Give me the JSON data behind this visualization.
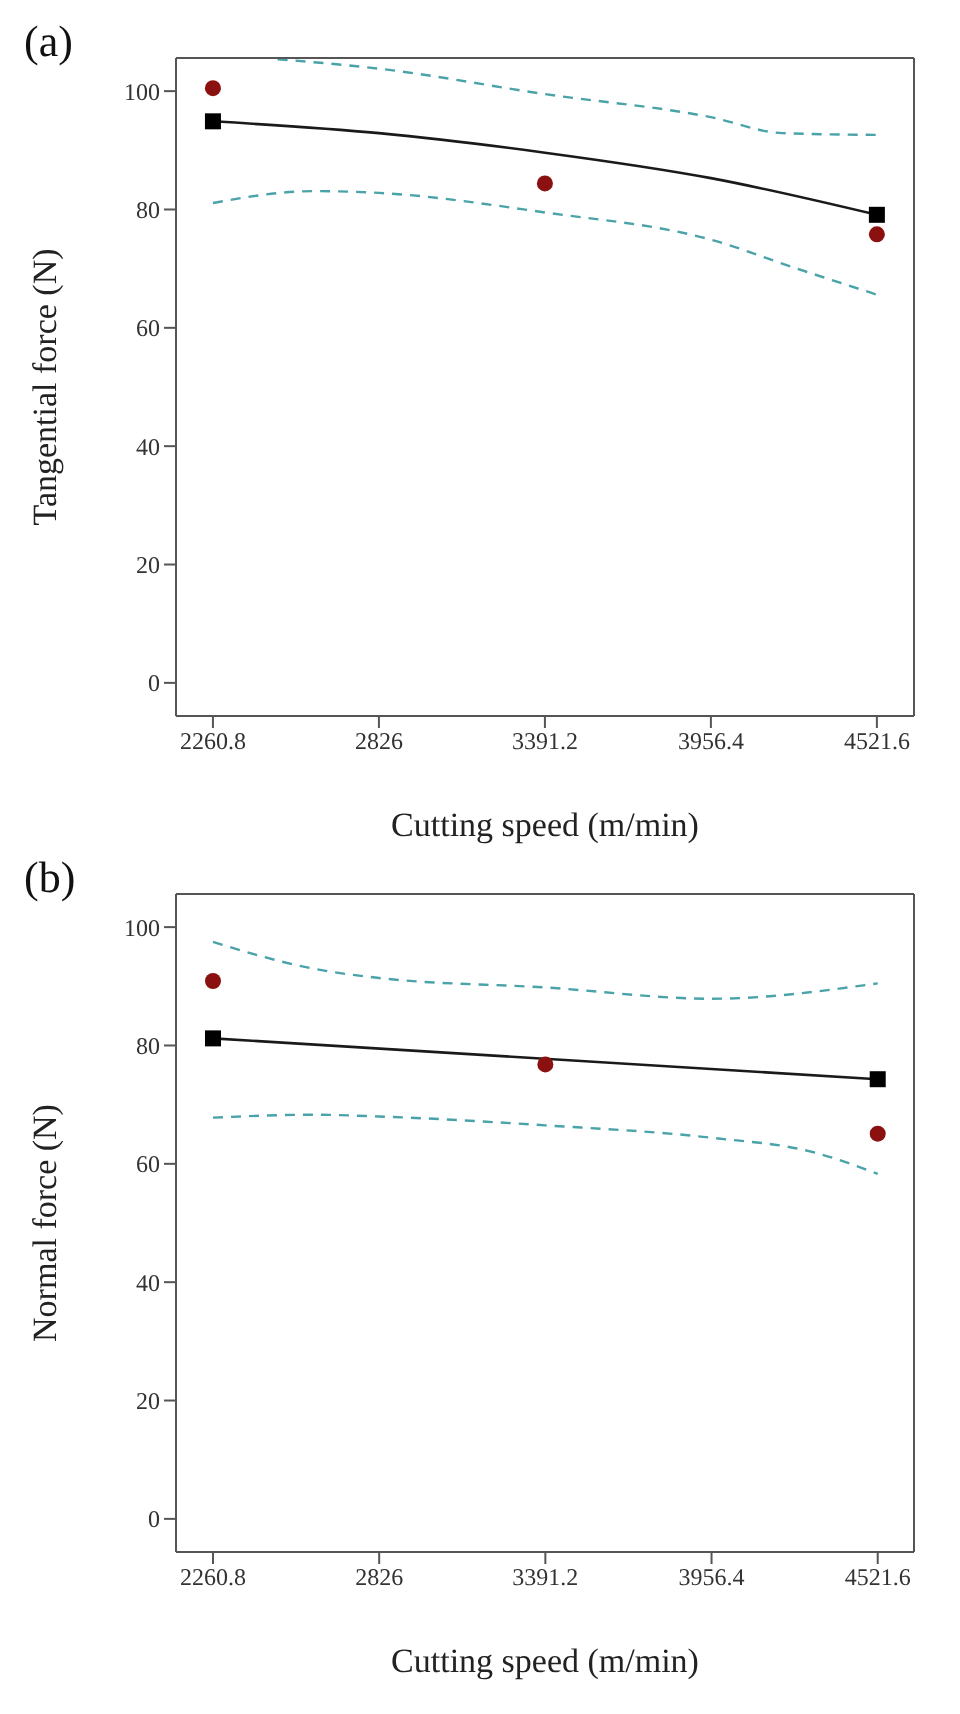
{
  "chart_data": [
    {
      "type": "line",
      "title": "(a)",
      "xlabel": "Cutting speed (m/min)",
      "ylabel": "Tangential force (N)",
      "xlim": [
        2135,
        4648
      ],
      "xticks": [
        2260.8,
        2826,
        3391.2,
        3956.4,
        4521.6
      ],
      "ylim": [
        -5.6,
        105.6
      ],
      "yticks": [
        0,
        20,
        40,
        60,
        80,
        100
      ],
      "series": [
        {
          "color": "#1a1a1a",
          "marker": "none",
          "line_style": "solid",
          "x": [
            2260.8,
            2826,
            3391.2,
            3956.4,
            4521.6
          ],
          "values": [
            94.9,
            92.9,
            89.6,
            85.3,
            79.1
          ]
        },
        {
          "color": "#4aa3a8",
          "marker": "none",
          "line_style": "dashed",
          "x": [
            2481,
            2826,
            3391.2,
            3956.4,
            4200,
            4521.6
          ],
          "values": [
            105.4,
            103.8,
            99.5,
            95.6,
            92.9,
            92.6
          ]
        },
        {
          "color": "#4aa3a8",
          "marker": "none",
          "line_style": "dashed",
          "x": [
            2260.8,
            2600,
            2826,
            3391.2,
            3956.4,
            4250,
            4521.6
          ],
          "values": [
            81.1,
            83.1,
            82.8,
            79.5,
            74.9,
            70,
            65.6
          ]
        },
        {
          "type": "scatter",
          "color": "#000000",
          "marker": "square",
          "x": [
            2260.8,
            4521.6
          ],
          "values": [
            94.9,
            79.1
          ]
        },
        {
          "type": "scatter",
          "color": "#8b1010",
          "marker": "circle",
          "x": [
            2260.8,
            3391.2,
            4521.6
          ],
          "values": [
            100.5,
            84.4,
            75.8
          ]
        }
      ]
    },
    {
      "type": "line",
      "title": "(b)",
      "xlabel": "Cutting speed (m/min)",
      "ylabel": "Normal force (N)",
      "xlim": [
        2135,
        4645
      ],
      "xticks": [
        2260.8,
        2826,
        3391.2,
        3956.4,
        4521.6
      ],
      "ylim": [
        -5.6,
        105.6
      ],
      "yticks": [
        0,
        20,
        40,
        60,
        80,
        100
      ],
      "series": [
        {
          "color": "#1a1a1a",
          "marker": "none",
          "line_style": "solid",
          "x": [
            2260.8,
            4521.6
          ],
          "values": [
            81.2,
            74.3
          ]
        },
        {
          "color": "#4aa3a8",
          "marker": "none",
          "line_style": "dashed",
          "x": [
            2260.8,
            2600,
            2826,
            3391.2,
            3956.4,
            4521.6
          ],
          "values": [
            97.5,
            93,
            91.4,
            89.8,
            87.9,
            90.5
          ]
        },
        {
          "color": "#4aa3a8",
          "marker": "none",
          "line_style": "dashed",
          "x": [
            2260.8,
            2600,
            2826,
            3391.2,
            3956.4,
            4300,
            4521.6
          ],
          "values": [
            67.8,
            68.3,
            68,
            66.5,
            64.4,
            62,
            58.3
          ]
        },
        {
          "type": "scatter",
          "color": "#000000",
          "marker": "square",
          "x": [
            2260.8,
            4521.6
          ],
          "values": [
            81.2,
            74.3
          ]
        },
        {
          "type": "scatter",
          "color": "#8b1010",
          "marker": "circle",
          "x": [
            2260.8,
            3391.2,
            4521.6
          ],
          "values": [
            90.9,
            76.8,
            65.1
          ]
        }
      ]
    }
  ]
}
